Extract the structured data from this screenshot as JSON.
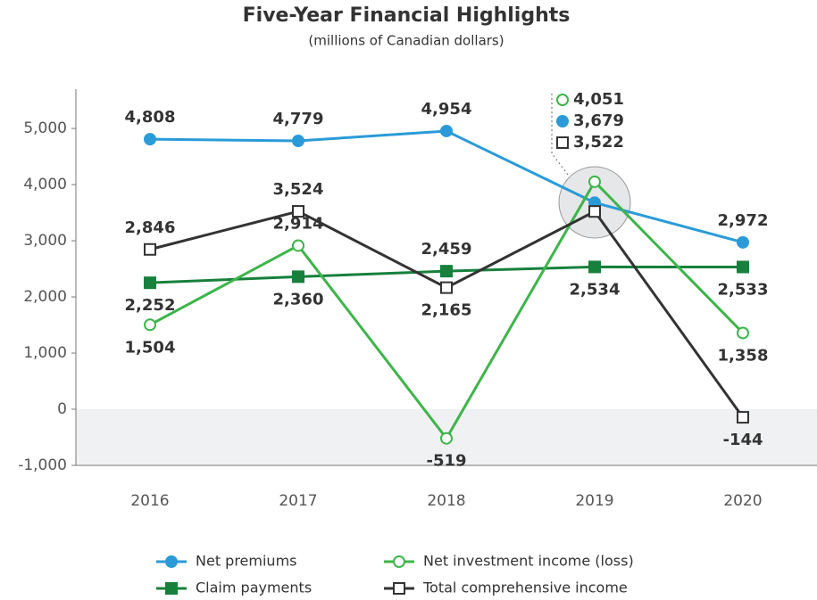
{
  "chart_data": {
    "type": "line",
    "title": "Five-Year Financial Highlights",
    "subtitle": "(millions of Canadian dollars)",
    "categories": [
      "2016",
      "2017",
      "2018",
      "2019",
      "2020"
    ],
    "ylim": [
      -1000,
      5700
    ],
    "yticks": [
      {
        "value": -1000,
        "label": "-1,000"
      },
      0,
      {
        "value": 1000,
        "label": "1,000"
      },
      {
        "value": 2000,
        "label": "2,000"
      },
      {
        "value": 3000,
        "label": "3,000"
      },
      {
        "value": 4000,
        "label": "4,000"
      },
      {
        "value": 5000,
        "label": "5,000"
      }
    ],
    "grid": false,
    "legend": "bottom",
    "series": [
      {
        "name": "Net premiums",
        "color": "#2a9bd8",
        "marker": "circle",
        "filled": true,
        "values": [
          4808,
          4779,
          4954,
          3679,
          2972
        ],
        "value_labels": [
          "4,808",
          "4,779",
          "4,954",
          "3,679",
          "2,972"
        ]
      },
      {
        "name": "Claim payments",
        "color": "#17803c",
        "marker": "square",
        "filled": true,
        "values": [
          2252,
          2360,
          2459,
          2534,
          2533
        ],
        "value_labels": [
          "2,252",
          "2,360",
          "2,459",
          "2,534",
          "2,533"
        ]
      },
      {
        "name": "Net investment income (loss)",
        "color": "#3db54a",
        "marker": "circle",
        "filled": false,
        "values": [
          1504,
          2914,
          -519,
          4051,
          1358
        ],
        "value_labels": [
          "1,504",
          "2,914",
          "-519",
          "4,051",
          "1,358"
        ]
      },
      {
        "name": "Total comprehensive income",
        "color": "#333333",
        "marker": "square",
        "filled": false,
        "values": [
          2846,
          3524,
          2165,
          3522,
          -144
        ],
        "value_labels": [
          "2,846",
          "3,524",
          "2,165",
          "3,522",
          "-144"
        ]
      }
    ]
  }
}
